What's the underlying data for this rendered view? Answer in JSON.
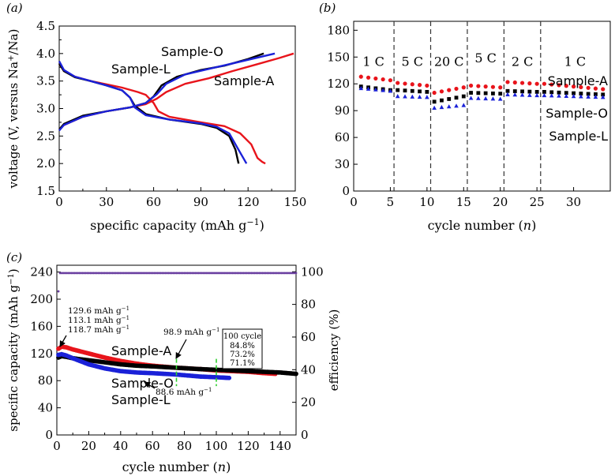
{
  "figure": {
    "colors": {
      "sample_o": "#000000",
      "sample_a": "#e8141b",
      "sample_l": "#1a21d8",
      "efficiency": "#6a3fa0",
      "marker": "#2fd02f"
    }
  },
  "chart_data": [
    {
      "id": "a",
      "panel_label": "(a)",
      "type": "line",
      "xlabel": "specific capacity (mAh g",
      "xlabel_sup": "−1",
      "xlabel_close": ")",
      "ylabel": "voltage (V, versus Na",
      "ylabel_sup": "+",
      "ylabel_close": "/Na)",
      "xlim": [
        0,
        150
      ],
      "ylim": [
        1.5,
        4.5
      ],
      "xticks": [
        "0",
        "30",
        "60",
        "90",
        "120",
        "150"
      ],
      "yticks": [
        "1.5",
        "2.0",
        "2.5",
        "3.0",
        "3.5",
        "4.0",
        "4.5"
      ],
      "series": [
        {
          "name": "Sample-O",
          "color": "#000000",
          "charge": [
            [
              0,
              2.62
            ],
            [
              3,
              2.72
            ],
            [
              15,
              2.87
            ],
            [
              30,
              2.95
            ],
            [
              45,
              3.02
            ],
            [
              55,
              3.1
            ],
            [
              60,
              3.22
            ],
            [
              65,
              3.42
            ],
            [
              75,
              3.58
            ],
            [
              90,
              3.7
            ],
            [
              105,
              3.78
            ],
            [
              120,
              3.9
            ],
            [
              130,
              4.0
            ]
          ],
          "discharge": [
            [
              0,
              3.82
            ],
            [
              3,
              3.68
            ],
            [
              10,
              3.57
            ],
            [
              20,
              3.5
            ],
            [
              30,
              3.42
            ],
            [
              40,
              3.33
            ],
            [
              45,
              3.2
            ],
            [
              48,
              3.05
            ],
            [
              55,
              2.9
            ],
            [
              70,
              2.8
            ],
            [
              90,
              2.72
            ],
            [
              100,
              2.65
            ],
            [
              108,
              2.5
            ],
            [
              112,
              2.25
            ],
            [
              114,
              2.0
            ]
          ]
        },
        {
          "name": "Sample-A",
          "color": "#e8141b",
          "charge": [
            [
              0,
              2.62
            ],
            [
              3,
              2.7
            ],
            [
              15,
              2.85
            ],
            [
              30,
              2.95
            ],
            [
              45,
              3.02
            ],
            [
              55,
              3.08
            ],
            [
              62,
              3.18
            ],
            [
              68,
              3.3
            ],
            [
              80,
              3.45
            ],
            [
              95,
              3.55
            ],
            [
              110,
              3.68
            ],
            [
              125,
              3.8
            ],
            [
              140,
              3.92
            ],
            [
              149,
              4.0
            ]
          ],
          "discharge": [
            [
              0,
              3.82
            ],
            [
              3,
              3.68
            ],
            [
              10,
              3.58
            ],
            [
              20,
              3.5
            ],
            [
              30,
              3.44
            ],
            [
              40,
              3.38
            ],
            [
              50,
              3.3
            ],
            [
              55,
              3.25
            ],
            [
              60,
              3.1
            ],
            [
              63,
              2.95
            ],
            [
              70,
              2.85
            ],
            [
              90,
              2.75
            ],
            [
              105,
              2.68
            ],
            [
              115,
              2.55
            ],
            [
              122,
              2.35
            ],
            [
              126,
              2.1
            ],
            [
              129,
              2.03
            ],
            [
              131,
              2.0
            ]
          ]
        },
        {
          "name": "Sample-L",
          "color": "#1a21d8",
          "charge": [
            [
              0,
              2.6
            ],
            [
              3,
              2.7
            ],
            [
              15,
              2.85
            ],
            [
              30,
              2.95
            ],
            [
              45,
              3.02
            ],
            [
              55,
              3.1
            ],
            [
              62,
              3.26
            ],
            [
              68,
              3.45
            ],
            [
              80,
              3.62
            ],
            [
              95,
              3.72
            ],
            [
              110,
              3.82
            ],
            [
              125,
              3.92
            ],
            [
              137,
              4.0
            ]
          ],
          "discharge": [
            [
              0,
              3.86
            ],
            [
              3,
              3.7
            ],
            [
              10,
              3.58
            ],
            [
              20,
              3.5
            ],
            [
              30,
              3.42
            ],
            [
              40,
              3.33
            ],
            [
              45,
              3.2
            ],
            [
              48,
              3.02
            ],
            [
              55,
              2.88
            ],
            [
              70,
              2.8
            ],
            [
              90,
              2.73
            ],
            [
              100,
              2.67
            ],
            [
              108,
              2.55
            ],
            [
              113,
              2.3
            ],
            [
              117,
              2.1
            ],
            [
              119,
              2.0
            ]
          ]
        }
      ],
      "legend": [
        {
          "text": "Sample-O",
          "color": "#000000"
        },
        {
          "text": "Sample-L",
          "color": "#1a21d8"
        },
        {
          "text": "Sample-A",
          "color": "#e8141b"
        }
      ]
    },
    {
      "id": "b",
      "panel_label": "(b)",
      "type": "scatter",
      "xlabel": "cycle number (",
      "xlabel_var": "n",
      "xlabel_close": ")",
      "xlim": [
        0,
        35
      ],
      "ylim": [
        0,
        190
      ],
      "xticks": [
        "0",
        "5",
        "10",
        "15",
        "20",
        "25",
        "30"
      ],
      "yticks": [
        "0",
        "30",
        "60",
        "90",
        "120",
        "150",
        "180"
      ],
      "rate_dividers": [
        5.5,
        10.5,
        15.5,
        20.5,
        25.5
      ],
      "rate_labels": [
        "1 C",
        "5 C",
        "20 C",
        "5 C",
        "2 C",
        "1 C"
      ],
      "rate_label_x": [
        2.7,
        8.0,
        13.0,
        18.0,
        23.0,
        30.2
      ],
      "rate_label_y": [
        140,
        140,
        140,
        144,
        140,
        140
      ],
      "segments": [
        [
          1,
          5
        ],
        [
          6,
          10
        ],
        [
          11,
          15
        ],
        [
          16,
          20
        ],
        [
          21,
          25
        ],
        [
          26,
          34
        ]
      ],
      "series": [
        {
          "name": "Sample-A",
          "color": "#e8141b",
          "marker": "circle",
          "levels": [
            [
              128,
              124
            ],
            [
              121,
              118
            ],
            [
              110,
              116
            ],
            [
              118,
              116
            ],
            [
              122,
              120
            ],
            [
              120,
              114
            ]
          ]
        },
        {
          "name": "Sample-O",
          "color": "#000000",
          "marker": "square",
          "levels": [
            [
              117,
              113
            ],
            [
              113,
              111
            ],
            [
              100,
              106
            ],
            [
              110,
              109
            ],
            [
              112,
              111
            ],
            [
              111,
              108
            ]
          ]
        },
        {
          "name": "Sample-L",
          "color": "#1a21d8",
          "marker": "triangle",
          "levels": [
            [
              115,
              112
            ],
            [
              106,
              105
            ],
            [
              93,
              96
            ],
            [
              104,
              103
            ],
            [
              108,
              107
            ],
            [
              107,
              105
            ]
          ]
        }
      ],
      "legend": [
        {
          "text": "Sample-A",
          "color": "#e8141b"
        },
        {
          "text": "Sample-O",
          "color": "#000000"
        },
        {
          "text": "Sample-L",
          "color": "#1a21d8"
        }
      ]
    },
    {
      "id": "c",
      "panel_label": "(c)",
      "type": "scatter",
      "xlabel": "cycle number (",
      "xlabel_var": "n",
      "xlabel_close": ")",
      "ylabel": "specific capacity (mAh g",
      "ylabel_sup": "−1",
      "ylabel_close": ")",
      "y2label": "efficiency (%)",
      "xlim": [
        0,
        150
      ],
      "ylim": [
        0,
        250
      ],
      "y2lim": [
        0,
        104
      ],
      "xticks": [
        "0",
        "20",
        "40",
        "60",
        "80",
        "100",
        "120",
        "140"
      ],
      "yticks": [
        "0",
        "40",
        "80",
        "120",
        "160",
        "200",
        "240"
      ],
      "y2ticks": [
        "0",
        "20",
        "40",
        "60",
        "80",
        "100"
      ],
      "series": [
        {
          "name": "Sample-A",
          "color": "#e8141b",
          "n": 137,
          "points": [
            [
              1,
              127
            ],
            [
              3,
              130
            ],
            [
              6,
              129
            ],
            [
              10,
              126
            ],
            [
              20,
              120
            ],
            [
              30,
              114
            ],
            [
              40,
              109
            ],
            [
              50,
              105
            ],
            [
              60,
              102
            ],
            [
              75,
              99
            ],
            [
              90,
              97
            ],
            [
              100,
              95
            ],
            [
              110,
              94
            ],
            [
              120,
              93
            ],
            [
              130,
              91
            ],
            [
              137,
              90
            ]
          ]
        },
        {
          "name": "Sample-O",
          "color": "#000000",
          "n": 150,
          "points": [
            [
              1,
              114
            ],
            [
              3,
              116
            ],
            [
              6,
              115
            ],
            [
              10,
              113
            ],
            [
              20,
              110
            ],
            [
              30,
              107
            ],
            [
              40,
              104
            ],
            [
              50,
              102
            ],
            [
              60,
              101
            ],
            [
              75,
              99
            ],
            [
              90,
              97
            ],
            [
              100,
              96
            ],
            [
              120,
              94
            ],
            [
              140,
              92
            ],
            [
              150,
              90
            ]
          ]
        },
        {
          "name": "Sample-L",
          "color": "#1a21d8",
          "n": 108,
          "points": [
            [
              1,
              118
            ],
            [
              3,
              119
            ],
            [
              6,
              117
            ],
            [
              10,
              113
            ],
            [
              20,
              104
            ],
            [
              30,
              98
            ],
            [
              40,
              94
            ],
            [
              50,
              92
            ],
            [
              60,
              91
            ],
            [
              75,
              89
            ],
            [
              90,
              86
            ],
            [
              100,
              85
            ],
            [
              108,
              84
            ]
          ]
        }
      ],
      "efficiency_series": {
        "name": "efficiency",
        "color": "#6a3fa0",
        "first": 88,
        "value": 99.2
      },
      "markers": [
        75,
        100
      ],
      "annotations": {
        "initial_a": {
          "value": "129.6 mAh g",
          "sup": "−1"
        },
        "initial_o": {
          "value": "113.1 mAh g",
          "sup": "−1"
        },
        "initial_l": {
          "value": "118.7 mAh g",
          "sup": "−1"
        },
        "at75_upper": {
          "value": "98.9 mAh g",
          "sup": "−1"
        },
        "at75_lower": {
          "value": "88.6 mAh g",
          "sup": "−1"
        },
        "retention_box": {
          "title": "100 cycle",
          "o": "84.8%",
          "a": "73.2%",
          "l": "71.1%"
        }
      },
      "legend": [
        {
          "text": "Sample-A",
          "color": "#e8141b"
        },
        {
          "text": "Sample-O",
          "color": "#000000"
        },
        {
          "text": "Sample-L",
          "color": "#1a21d8"
        }
      ]
    }
  ]
}
